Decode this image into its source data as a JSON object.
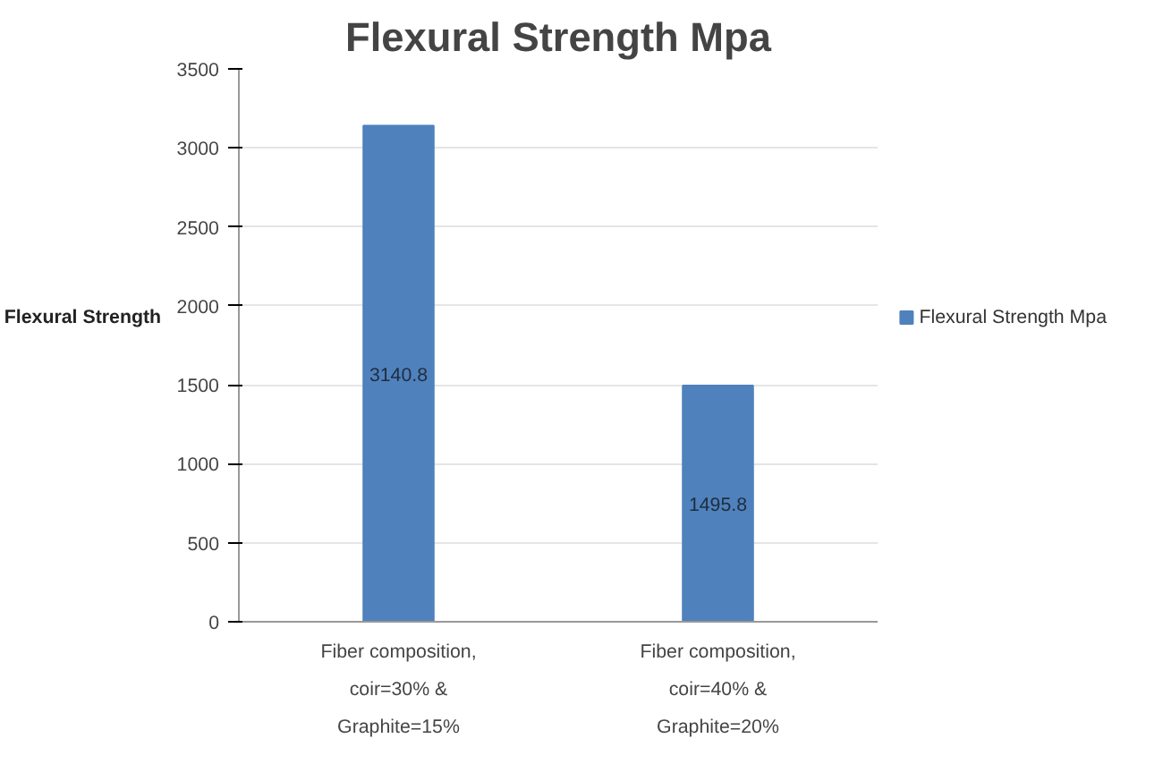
{
  "chart_data": {
    "type": "bar",
    "title": "Flexural Strength Mpa",
    "ylabel": "Flexural Strength",
    "categories": [
      "Fiber composition,\ncoir=30% &\nGraphite=15%",
      "Fiber composition,\ncoir=40% &\nGraphite=20%"
    ],
    "series": [
      {
        "name": "Flexural Strength Mpa",
        "color": "#4f81bd",
        "values": [
          3140.8,
          1495.8
        ]
      }
    ],
    "ylim": [
      0,
      3500
    ],
    "yticks": [
      0,
      500,
      1000,
      1500,
      2000,
      2500,
      3000,
      3500
    ],
    "grid": "y",
    "legend": "right",
    "data_labels": true
  }
}
